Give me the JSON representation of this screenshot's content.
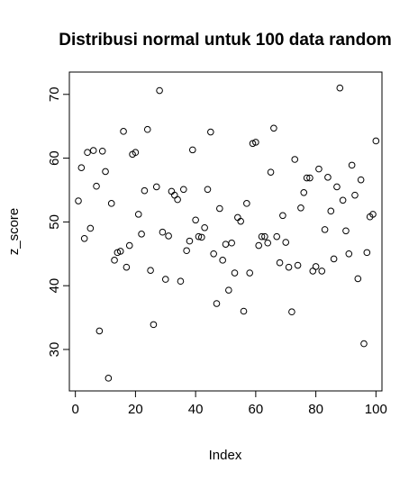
{
  "chart_data": {
    "type": "scatter",
    "title": "Distribusi normal untuk 100 data random",
    "xlabel": "Index",
    "ylabel": "z_score",
    "xlim": [
      -2,
      102
    ],
    "ylim": [
      23.5,
      73.5
    ],
    "xticks": [
      0,
      20,
      40,
      60,
      80,
      100
    ],
    "yticks": [
      30,
      40,
      50,
      60,
      70
    ],
    "grid": false,
    "marker": "open-circle",
    "x": [
      1,
      2,
      3,
      4,
      5,
      6,
      7,
      8,
      9,
      10,
      11,
      12,
      13,
      14,
      15,
      16,
      17,
      18,
      19,
      20,
      21,
      22,
      23,
      24,
      25,
      26,
      27,
      28,
      29,
      30,
      31,
      32,
      33,
      34,
      35,
      36,
      37,
      38,
      39,
      40,
      41,
      42,
      43,
      44,
      45,
      46,
      47,
      48,
      49,
      50,
      51,
      52,
      53,
      54,
      55,
      56,
      57,
      58,
      59,
      60,
      61,
      62,
      63,
      64,
      65,
      66,
      67,
      68,
      69,
      70,
      71,
      72,
      73,
      74,
      75,
      76,
      77,
      78,
      79,
      80,
      81,
      82,
      83,
      84,
      85,
      86,
      87,
      88,
      89,
      90,
      91,
      92,
      93,
      94,
      95,
      96,
      97,
      98,
      99,
      100
    ],
    "y": [
      53.3,
      58.5,
      47.4,
      60.9,
      49.0,
      61.2,
      55.6,
      32.9,
      61.1,
      57.9,
      25.5,
      52.9,
      44.0,
      45.2,
      45.4,
      64.2,
      42.9,
      46.3,
      60.6,
      60.9,
      51.2,
      48.1,
      54.9,
      64.5,
      42.4,
      33.9,
      55.5,
      70.6,
      48.4,
      41.0,
      47.8,
      54.8,
      54.2,
      53.5,
      40.7,
      55.1,
      45.5,
      47.0,
      61.3,
      50.3,
      47.7,
      47.6,
      49.1,
      55.1,
      64.1,
      45.0,
      37.2,
      52.1,
      44.0,
      46.5,
      39.3,
      46.7,
      42.0,
      50.7,
      50.1,
      36.0,
      52.9,
      42.0,
      62.3,
      62.5,
      46.3,
      47.7,
      47.7,
      46.7,
      57.8,
      64.7,
      47.7,
      43.6,
      51.0,
      46.8,
      42.9,
      35.9,
      59.8,
      43.2,
      52.2,
      54.6,
      56.9,
      56.9,
      42.3,
      43.0,
      58.3,
      42.3,
      48.8,
      57.0,
      51.7,
      44.2,
      55.5,
      71.0,
      53.4,
      48.6,
      45.0,
      58.9,
      54.2,
      41.1,
      56.6,
      30.9,
      45.2,
      50.8,
      51.2,
      62.7
    ]
  }
}
